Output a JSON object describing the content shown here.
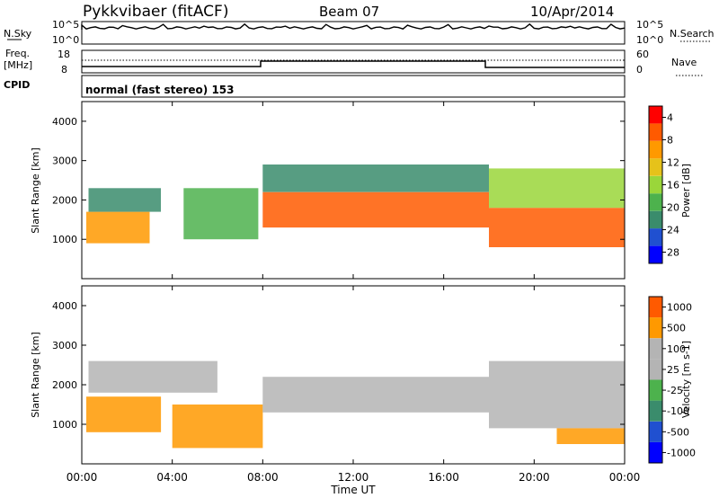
{
  "header": {
    "station": "Pykkvibaer (fitACF)",
    "beam": "Beam 07",
    "date": "10/Apr/2014"
  },
  "noise_panel": {
    "left_label": "N.Sky",
    "left_ticks": [
      "10^5",
      "10^0"
    ],
    "right_label": "N.Search",
    "right_ticks": [
      "10^5",
      "10^0"
    ]
  },
  "freq_panel": {
    "left_label_line1": "Freq.",
    "left_label_line2": "[MHz]",
    "left_ticks": [
      "18",
      "8"
    ],
    "right_label": "Nave",
    "right_ticks": [
      "60",
      "0"
    ]
  },
  "cpid_panel": {
    "label": "CPID",
    "text": "normal (fast stereo) 153"
  },
  "colors": {
    "power_scale": [
      "#0000ff",
      "#2050d0",
      "#3a8c6c",
      "#4db24d",
      "#9ad63a",
      "#e6c21a",
      "#ff9900",
      "#ff5a00",
      "#ff0000"
    ],
    "velocity_scale": [
      "#0000ff",
      "#2050d0",
      "#3a8c6c",
      "#4db24d",
      "#b4b4b4",
      "#b4b4b4",
      "#ff9900",
      "#ff5a00",
      "#ff0000"
    ]
  },
  "chart_data": [
    {
      "type": "heatmap",
      "title": "",
      "xlabel": "Time UT",
      "ylabel": "Slant Range [km]",
      "x_ticks": [
        "00:00",
        "04:00",
        "08:00",
        "12:00",
        "16:00",
        "20:00",
        "00:00"
      ],
      "y_ticks": [
        "1000",
        "2000",
        "3000",
        "4000"
      ],
      "xlim": [
        0,
        24
      ],
      "ylim": [
        0,
        4500
      ],
      "colorbar_label": "Power [dB]",
      "colorbar_ticks": [
        "4",
        "8",
        "12",
        "16",
        "20",
        "24",
        "28"
      ],
      "colorbar_range": [
        0,
        32
      ],
      "bands": [
        {
          "t0": 0.2,
          "t1": 3.0,
          "r0": 900,
          "r1": 1700,
          "value": 22
        },
        {
          "t0": 0.3,
          "t1": 3.5,
          "r0": 1700,
          "r1": 2300,
          "value": 8
        },
        {
          "t0": 4.5,
          "t1": 7.8,
          "r0": 1000,
          "r1": 2300,
          "value": 14
        },
        {
          "t0": 8.0,
          "t1": 18.0,
          "r0": 1300,
          "r1": 2200,
          "value": 26
        },
        {
          "t0": 8.0,
          "t1": 18.0,
          "r0": 2200,
          "r1": 2900,
          "value": 8
        },
        {
          "t0": 18.0,
          "t1": 24.0,
          "r0": 800,
          "r1": 1800,
          "value": 28
        },
        {
          "t0": 18.0,
          "t1": 24.0,
          "r0": 1800,
          "r1": 2800,
          "value": 16
        }
      ]
    },
    {
      "type": "heatmap",
      "title": "",
      "xlabel": "Time UT",
      "ylabel": "Slant Range [km]",
      "x_ticks": [
        "00:00",
        "04:00",
        "08:00",
        "12:00",
        "16:00",
        "20:00",
        "00:00"
      ],
      "y_ticks": [
        "1000",
        "2000",
        "3000",
        "4000"
      ],
      "xlim": [
        0,
        24
      ],
      "ylim": [
        0,
        4500
      ],
      "colorbar_label": "Velocity [m s-1]",
      "colorbar_ticks": [
        "1000",
        "500",
        "100",
        "25",
        "-25",
        "-100",
        "-500",
        "-1000"
      ],
      "bands": [
        {
          "t0": 0.2,
          "t1": 3.5,
          "r0": 800,
          "r1": 1700,
          "value": -300
        },
        {
          "t0": 0.3,
          "t1": 6.0,
          "r0": 1800,
          "r1": 2600,
          "value": 0
        },
        {
          "t0": 4.0,
          "t1": 8.0,
          "r0": 400,
          "r1": 1500,
          "value": -200
        },
        {
          "t0": 8.0,
          "t1": 18.0,
          "r0": 1300,
          "r1": 2200,
          "value": 0
        },
        {
          "t0": 18.0,
          "t1": 24.0,
          "r0": 900,
          "r1": 2600,
          "value": 0
        },
        {
          "t0": 21.0,
          "t1": 24.0,
          "r0": 500,
          "r1": 900,
          "value": -300
        }
      ]
    }
  ]
}
